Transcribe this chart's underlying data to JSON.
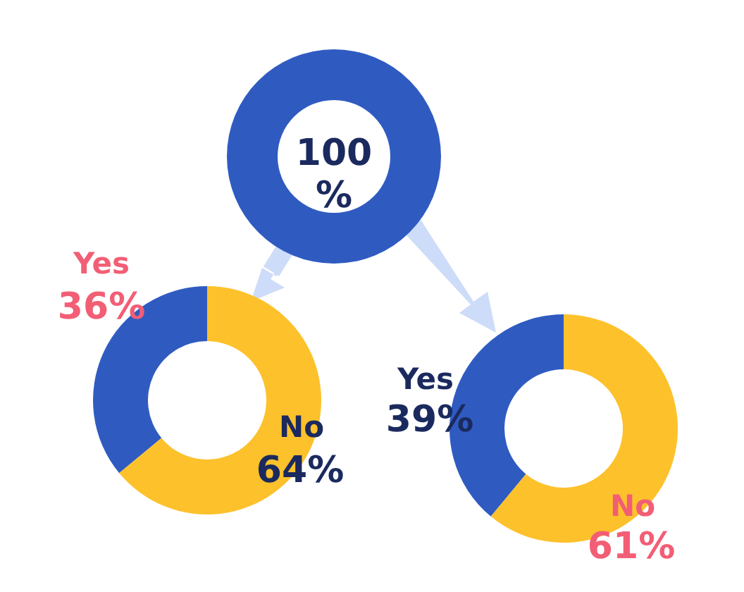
{
  "chart_data": [
    {
      "type": "donut",
      "categories": [
        null
      ],
      "values": [
        100
      ],
      "colors": [
        "#2f5bc1"
      ],
      "value_labels": [
        "100 %"
      ]
    },
    {
      "type": "donut",
      "categories": [
        "Yes",
        "No"
      ],
      "values": [
        36,
        64
      ],
      "colors": [
        "#2f5bc1",
        "#fdc12b"
      ],
      "value_labels": [
        "36%",
        "64%"
      ]
    },
    {
      "type": "donut",
      "categories": [
        "Yes",
        "No"
      ],
      "values": [
        39,
        61
      ],
      "colors": [
        "#2f5bc1",
        "#fdc12b"
      ],
      "value_labels": [
        "39%",
        "61%"
      ]
    }
  ]
}
